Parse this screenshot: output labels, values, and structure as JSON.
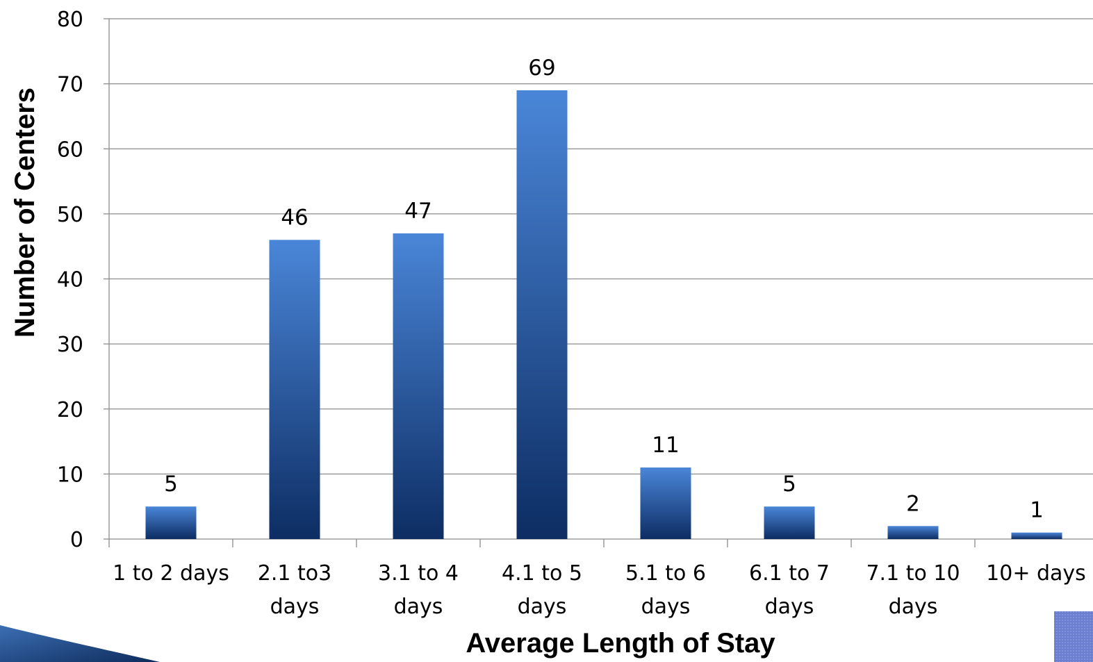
{
  "chart_data": {
    "type": "bar",
    "title": "",
    "xlabel": "Average Length of Stay",
    "ylabel": "Number of Centers",
    "categories": [
      [
        "1 to 2 days"
      ],
      [
        "2.1 to3",
        "days"
      ],
      [
        "3.1 to 4",
        "days"
      ],
      [
        "4.1 to 5",
        "days"
      ],
      [
        "5.1 to 6",
        "days"
      ],
      [
        "6.1 to 7",
        "days"
      ],
      [
        "7.1 to 10",
        "days"
      ],
      [
        "10+ days"
      ]
    ],
    "values": [
      5,
      46,
      47,
      69,
      11,
      5,
      2,
      1
    ],
    "ylim": [
      0,
      80
    ],
    "yticks": [
      0,
      10,
      20,
      30,
      40,
      50,
      60,
      70,
      80
    ],
    "grid": true,
    "legend": "none",
    "colors": {
      "bar_top": "#4a86d8",
      "bar_bottom": "#0d2d63",
      "grid": "#8c8c8c",
      "axis": "#8c8c8c",
      "deco_dark": "#0e2c5c",
      "deco_blue": "#3c6fb4",
      "deco_square": "#6a7fd0"
    }
  }
}
